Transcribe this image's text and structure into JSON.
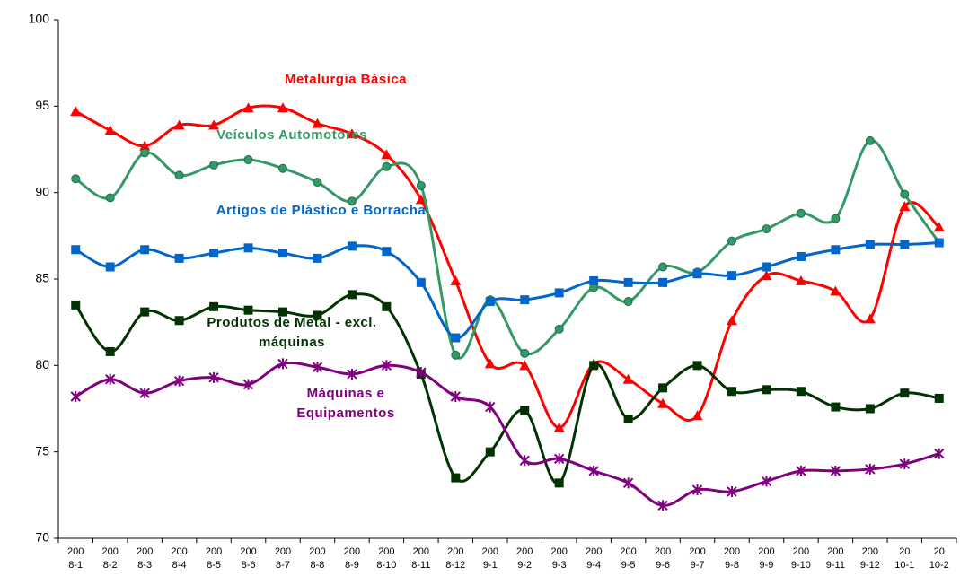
{
  "chart_data": {
    "type": "line",
    "categories": [
      "200 8-1",
      "200 8-2",
      "200 8-3",
      "200 8-4",
      "200 8-5",
      "200 8-6",
      "200 8-7",
      "200 8-8",
      "200 8-9",
      "200 8-10",
      "200 8-11",
      "200 8-12",
      "200 9-1",
      "200 9-2",
      "200 9-3",
      "200 9-4",
      "200 9-5",
      "200 9-6",
      "200 9-7",
      "200 9-8",
      "200 9-9",
      "200 9-10",
      "200 9-11",
      "200 9-12",
      "20 10-1",
      "20 10-2"
    ],
    "series": [
      {
        "name": "Metalurgia Básica",
        "color": "#ff0000",
        "marker": "triangle",
        "values": [
          94.7,
          93.6,
          92.7,
          93.9,
          93.9,
          94.9,
          94.9,
          94.0,
          93.4,
          92.2,
          89.6,
          84.9,
          80.1,
          80.0,
          76.4,
          80.1,
          79.2,
          77.8,
          77.1,
          82.6,
          85.2,
          84.9,
          84.3,
          82.7,
          89.2,
          88.0
        ]
      },
      {
        "name": "Veículos Automotores",
        "color": "#339966",
        "marker": "circle",
        "values": [
          90.8,
          89.7,
          92.3,
          91.0,
          91.6,
          91.9,
          91.4,
          90.6,
          89.5,
          91.5,
          90.4,
          80.6,
          83.8,
          80.7,
          82.1,
          84.5,
          83.7,
          85.7,
          85.4,
          87.2,
          87.9,
          88.8,
          88.5,
          93.0,
          89.9,
          87.1
        ]
      },
      {
        "name": "Artigos de Plástico e Borracha",
        "color": "#0066cc",
        "marker": "square",
        "values": [
          86.7,
          85.7,
          86.7,
          86.2,
          86.5,
          86.8,
          86.5,
          86.2,
          86.9,
          86.6,
          84.8,
          81.6,
          83.7,
          83.8,
          84.2,
          84.9,
          84.8,
          84.8,
          85.3,
          85.2,
          85.7,
          86.3,
          86.7,
          87.0,
          87.0,
          87.1
        ]
      },
      {
        "name": "Produtos de Metal - excl. máquinas",
        "color": "#003300",
        "marker": "square",
        "values": [
          83.5,
          80.8,
          83.1,
          82.6,
          83.4,
          83.2,
          83.1,
          82.9,
          84.1,
          83.4,
          79.5,
          73.5,
          75.0,
          77.4,
          73.2,
          80.0,
          76.9,
          78.7,
          80.0,
          78.5,
          78.6,
          78.5,
          77.6,
          77.5,
          78.4,
          78.1
        ]
      },
      {
        "name": "Máquinas e Equipamentos",
        "color": "#800080",
        "marker": "star",
        "values": [
          78.2,
          79.2,
          78.4,
          79.1,
          79.3,
          78.9,
          80.1,
          79.9,
          79.5,
          80.0,
          79.6,
          78.2,
          77.6,
          74.5,
          74.6,
          73.9,
          73.2,
          71.9,
          72.8,
          72.7,
          73.3,
          73.9,
          73.9,
          74.0,
          74.3,
          74.9
        ]
      }
    ],
    "ylim": [
      70,
      100
    ],
    "yticks": [
      70,
      75,
      80,
      85,
      90,
      95,
      100
    ],
    "grid": false
  }
}
